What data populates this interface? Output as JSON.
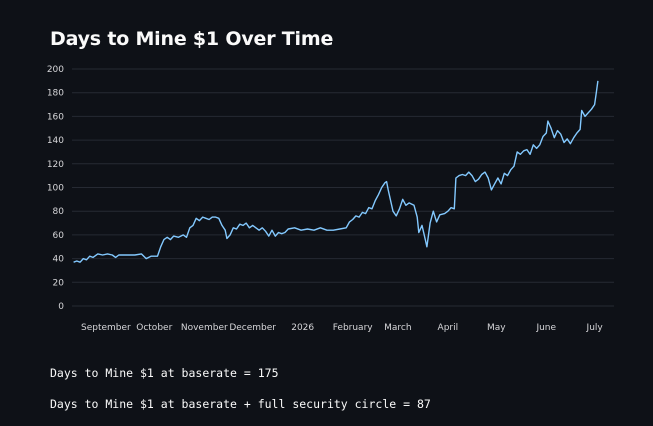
{
  "page": {
    "title": "Days to Mine $1 Over Time"
  },
  "metrics": [
    {
      "label": "Days to Mine $1 at baserate = ",
      "value": "175"
    },
    {
      "label": "Days to Mine $1 at baserate + full security circle = ",
      "value": "87"
    }
  ],
  "colors": {
    "background": "#0e1117",
    "line": "#83c9ff",
    "grid": "#262a33",
    "text": "#fafafa"
  },
  "chart_data": {
    "type": "line",
    "title": "Days to Mine $1 Over Time",
    "xlabel": "",
    "ylabel": "",
    "ylim": [
      0,
      200
    ],
    "yticks": [
      0,
      20,
      40,
      60,
      80,
      100,
      120,
      140,
      160,
      180,
      200
    ],
    "xlim": [
      "2025-08-11",
      "2026-07-13"
    ],
    "xticks": [
      {
        "date": "2025-09-01",
        "label": "September"
      },
      {
        "date": "2025-10-01",
        "label": "October"
      },
      {
        "date": "2025-11-01",
        "label": "November"
      },
      {
        "date": "2025-12-01",
        "label": "December"
      },
      {
        "date": "2026-01-01",
        "label": "2026"
      },
      {
        "date": "2026-02-01",
        "label": "February"
      },
      {
        "date": "2026-03-01",
        "label": "March"
      },
      {
        "date": "2026-04-01",
        "label": "April"
      },
      {
        "date": "2026-05-01",
        "label": "May"
      },
      {
        "date": "2026-06-01",
        "label": "June"
      },
      {
        "date": "2026-07-01",
        "label": "July"
      }
    ],
    "grid": true,
    "series": [
      {
        "points": [
          [
            "2025-08-12",
            37
          ],
          [
            "2025-08-14",
            38
          ],
          [
            "2025-08-16",
            37
          ],
          [
            "2025-08-18",
            40
          ],
          [
            "2025-08-20",
            39
          ],
          [
            "2025-08-22",
            42
          ],
          [
            "2025-08-24",
            41
          ],
          [
            "2025-08-27",
            44
          ],
          [
            "2025-08-30",
            43
          ],
          [
            "2025-09-02",
            44
          ],
          [
            "2025-09-05",
            43
          ],
          [
            "2025-09-07",
            41
          ],
          [
            "2025-09-09",
            43
          ],
          [
            "2025-09-14",
            43
          ],
          [
            "2025-09-19",
            43
          ],
          [
            "2025-09-23",
            44
          ],
          [
            "2025-09-26",
            40
          ],
          [
            "2025-09-29",
            42
          ],
          [
            "2025-10-03",
            42
          ],
          [
            "2025-10-05",
            50
          ],
          [
            "2025-10-07",
            56
          ],
          [
            "2025-10-09",
            58
          ],
          [
            "2025-10-11",
            56
          ],
          [
            "2025-10-13",
            59
          ],
          [
            "2025-10-16",
            58
          ],
          [
            "2025-10-19",
            60
          ],
          [
            "2025-10-21",
            58
          ],
          [
            "2025-10-23",
            66
          ],
          [
            "2025-10-25",
            68
          ],
          [
            "2025-10-27",
            74
          ],
          [
            "2025-10-29",
            72
          ],
          [
            "2025-10-31",
            75
          ],
          [
            "2025-11-02",
            74
          ],
          [
            "2025-11-04",
            73
          ],
          [
            "2025-11-06",
            75
          ],
          [
            "2025-11-08",
            75
          ],
          [
            "2025-11-10",
            74
          ],
          [
            "2025-11-12",
            68
          ],
          [
            "2025-11-14",
            64
          ],
          [
            "2025-11-15",
            57
          ],
          [
            "2025-11-17",
            60
          ],
          [
            "2025-11-19",
            66
          ],
          [
            "2025-11-21",
            65
          ],
          [
            "2025-11-23",
            69
          ],
          [
            "2025-11-25",
            68
          ],
          [
            "2025-11-27",
            70
          ],
          [
            "2025-11-29",
            66
          ],
          [
            "2025-12-01",
            68
          ],
          [
            "2025-12-03",
            66
          ],
          [
            "2025-12-05",
            64
          ],
          [
            "2025-12-07",
            66
          ],
          [
            "2025-12-09",
            63
          ],
          [
            "2025-12-11",
            59
          ],
          [
            "2025-12-13",
            64
          ],
          [
            "2025-12-15",
            59
          ],
          [
            "2025-12-17",
            62
          ],
          [
            "2025-12-19",
            61
          ],
          [
            "2025-12-21",
            62
          ],
          [
            "2025-12-23",
            65
          ],
          [
            "2025-12-27",
            66
          ],
          [
            "2025-12-31",
            64
          ],
          [
            "2026-01-04",
            65
          ],
          [
            "2026-01-08",
            64
          ],
          [
            "2026-01-12",
            66
          ],
          [
            "2026-01-16",
            64
          ],
          [
            "2026-01-20",
            64
          ],
          [
            "2026-01-24",
            65
          ],
          [
            "2026-01-28",
            66
          ],
          [
            "2026-01-30",
            71
          ],
          [
            "2026-02-01",
            73
          ],
          [
            "2026-02-03",
            76
          ],
          [
            "2026-02-05",
            75
          ],
          [
            "2026-02-07",
            79
          ],
          [
            "2026-02-09",
            78
          ],
          [
            "2026-02-11",
            83
          ],
          [
            "2026-02-13",
            82
          ],
          [
            "2026-02-15",
            89
          ],
          [
            "2026-02-17",
            94
          ],
          [
            "2026-02-19",
            100
          ],
          [
            "2026-02-21",
            104
          ],
          [
            "2026-02-22",
            105
          ],
          [
            "2026-02-23",
            98
          ],
          [
            "2026-02-25",
            86
          ],
          [
            "2026-02-26",
            80
          ],
          [
            "2026-02-28",
            76
          ],
          [
            "2026-03-02",
            82
          ],
          [
            "2026-03-04",
            90
          ],
          [
            "2026-03-06",
            85
          ],
          [
            "2026-03-08",
            87
          ],
          [
            "2026-03-11",
            85
          ],
          [
            "2026-03-13",
            75
          ],
          [
            "2026-03-14",
            62
          ],
          [
            "2026-03-16",
            68
          ],
          [
            "2026-03-18",
            56
          ],
          [
            "2026-03-19",
            50
          ],
          [
            "2026-03-21",
            70
          ],
          [
            "2026-03-23",
            80
          ],
          [
            "2026-03-25",
            71
          ],
          [
            "2026-03-27",
            77
          ],
          [
            "2026-03-30",
            78
          ],
          [
            "2026-04-01",
            80
          ],
          [
            "2026-04-03",
            83
          ],
          [
            "2026-04-05",
            82
          ],
          [
            "2026-04-06",
            108
          ],
          [
            "2026-04-08",
            110
          ],
          [
            "2026-04-10",
            111
          ],
          [
            "2026-04-12",
            110
          ],
          [
            "2026-04-14",
            113
          ],
          [
            "2026-04-16",
            110
          ],
          [
            "2026-04-18",
            105
          ],
          [
            "2026-04-20",
            107
          ],
          [
            "2026-04-22",
            111
          ],
          [
            "2026-04-24",
            113
          ],
          [
            "2026-04-26",
            108
          ],
          [
            "2026-04-28",
            98
          ],
          [
            "2026-04-30",
            103
          ],
          [
            "2026-05-02",
            108
          ],
          [
            "2026-05-04",
            103
          ],
          [
            "2026-05-06",
            112
          ],
          [
            "2026-05-08",
            110
          ],
          [
            "2026-05-10",
            115
          ],
          [
            "2026-05-12",
            118
          ],
          [
            "2026-05-14",
            130
          ],
          [
            "2026-05-16",
            128
          ],
          [
            "2026-05-18",
            131
          ],
          [
            "2026-05-20",
            132
          ],
          [
            "2026-05-22",
            128
          ],
          [
            "2026-05-24",
            136
          ],
          [
            "2026-05-26",
            133
          ],
          [
            "2026-05-28",
            136
          ],
          [
            "2026-05-30",
            143
          ],
          [
            "2026-06-01",
            146
          ],
          [
            "2026-06-02",
            156
          ],
          [
            "2026-06-04",
            150
          ],
          [
            "2026-06-06",
            142
          ],
          [
            "2026-06-08",
            148
          ],
          [
            "2026-06-10",
            145
          ],
          [
            "2026-06-12",
            138
          ],
          [
            "2026-06-14",
            141
          ],
          [
            "2026-06-16",
            137
          ],
          [
            "2026-06-18",
            142
          ],
          [
            "2026-06-20",
            146
          ],
          [
            "2026-06-22",
            149
          ],
          [
            "2026-06-23",
            165
          ],
          [
            "2026-06-25",
            160
          ],
          [
            "2026-06-27",
            163
          ],
          [
            "2026-06-29",
            166
          ],
          [
            "2026-07-01",
            170
          ],
          [
            "2026-07-02",
            180
          ],
          [
            "2026-07-03",
            190
          ]
        ]
      }
    ]
  }
}
